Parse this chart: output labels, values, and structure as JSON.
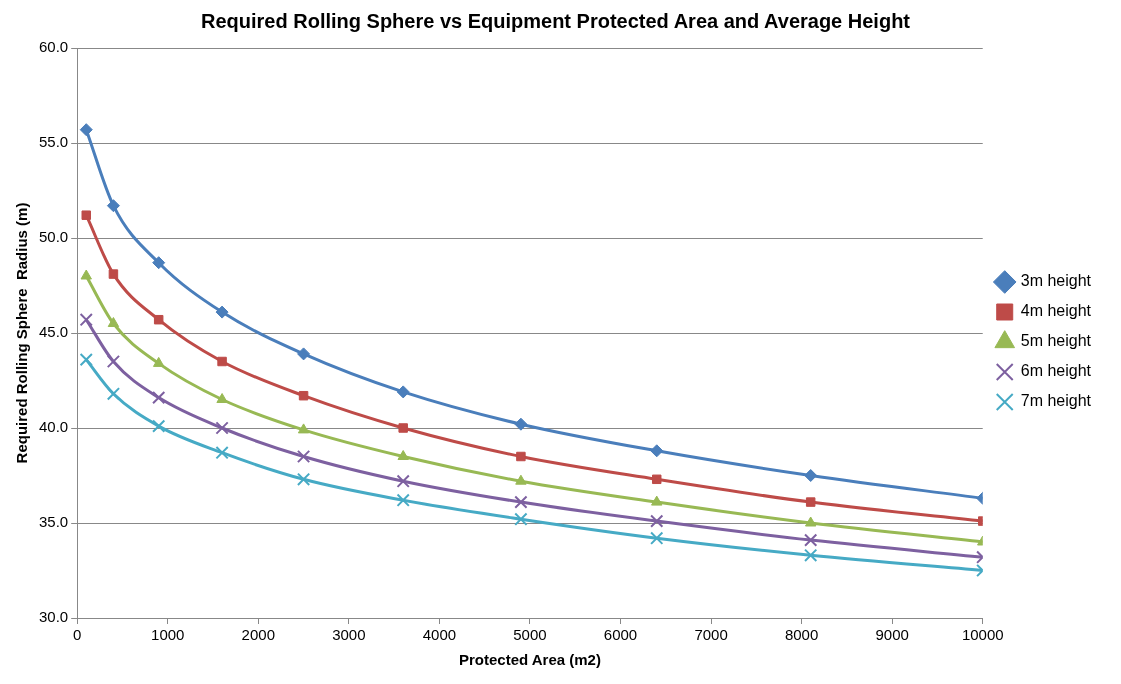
{
  "chart_data": {
    "type": "line",
    "title": "Required Rolling Sphere vs Equipment Protected Area and Average Height",
    "xlabel": "Protected Area (m2)",
    "ylabel": "Required Rolling Sphere  Radius (m)",
    "x": [
      100,
      400,
      900,
      1600,
      2500,
      3600,
      4900,
      6400,
      8100,
      10000
    ],
    "xlim": [
      0,
      10000
    ],
    "xticks": [
      0,
      1000,
      2000,
      3000,
      4000,
      5000,
      6000,
      7000,
      8000,
      9000,
      10000
    ],
    "ylim": [
      30,
      60
    ],
    "yticks": [
      {
        "value": 30,
        "label": "30.0"
      },
      {
        "value": 35,
        "label": "35.0"
      },
      {
        "value": 40,
        "label": "40.0"
      },
      {
        "value": 45,
        "label": "45.0"
      },
      {
        "value": 50,
        "label": "50.0"
      },
      {
        "value": 55,
        "label": "55.0"
      },
      {
        "value": 60,
        "label": "60.0"
      }
    ],
    "grid": "y",
    "legend": "right",
    "series": [
      {
        "name": "3m height",
        "color": "#4a7ebb",
        "marker": "diamond",
        "values": [
          55.7,
          51.7,
          48.7,
          46.1,
          43.9,
          41.9,
          40.2,
          38.8,
          37.5,
          36.3
        ]
      },
      {
        "name": "4m height",
        "color": "#be4b48",
        "marker": "square",
        "values": [
          51.2,
          48.1,
          45.7,
          43.5,
          41.7,
          40.0,
          38.5,
          37.3,
          36.1,
          35.1
        ]
      },
      {
        "name": "5m height",
        "color": "#98b954",
        "marker": "triangle",
        "values": [
          48.0,
          45.5,
          43.4,
          41.5,
          39.9,
          38.5,
          37.2,
          36.1,
          35.0,
          34.0
        ]
      },
      {
        "name": "6m height",
        "color": "#7d60a0",
        "marker": "cross",
        "values": [
          45.7,
          43.5,
          41.6,
          40.0,
          38.5,
          37.2,
          36.1,
          35.1,
          34.1,
          33.2
        ]
      },
      {
        "name": "7m height",
        "color": "#46aac5",
        "marker": "cross",
        "values": [
          43.6,
          41.8,
          40.1,
          38.7,
          37.3,
          36.2,
          35.2,
          34.2,
          33.3,
          32.5
        ]
      }
    ]
  }
}
